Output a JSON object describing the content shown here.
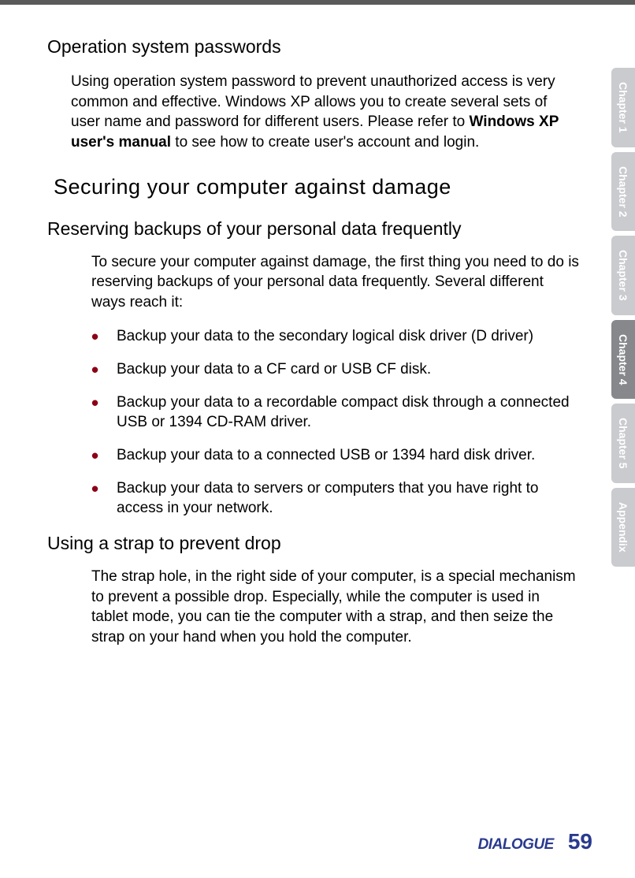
{
  "top_bar_color": "#5a5a5a",
  "section_passwords": {
    "heading": "Operation system passwords",
    "body_before_bold": "Using operation system password to prevent unauthorized access is very common and effective. Windows XP allows you to create several sets of user name and password for different users. Please refer to ",
    "bold": "Windows XP user's manual",
    "body_after_bold": " to see how to create user's account and login."
  },
  "section_damage": {
    "heading": "Securing your computer against damage",
    "backups": {
      "heading": "Reserving backups of your personal data frequently",
      "intro": "To secure your computer against damage, the first thing you need to do is reserving backups of your personal data frequently. Several different ways reach it:",
      "bullets": [
        "Backup your data to the secondary logical disk driver (D driver)",
        "Backup your data to a CF card or USB CF disk.",
        "Backup your data to a recordable compact disk through a connected USB or 1394 CD-RAM driver.",
        "Backup your data to a connected USB or 1394 hard disk driver.",
        "Backup your data to servers or computers that you have right to access in your network."
      ]
    },
    "strap": {
      "heading": "Using a strap to prevent drop",
      "body": "The strap hole, in the right side of your computer, is a special mechanism to prevent a possible drop. Especially, while the computer is used in tablet mode, you can tie the computer with a strap, and then seize the strap on your hand when you hold the computer."
    }
  },
  "tabs": [
    {
      "label": "Chapter 1",
      "active": false
    },
    {
      "label": "Chapter 2",
      "active": false
    },
    {
      "label": "Chapter 3",
      "active": false
    },
    {
      "label": "Chapter 4",
      "active": true
    },
    {
      "label": "Chapter 5",
      "active": false
    },
    {
      "label": "Appendix",
      "active": false
    }
  ],
  "footer": {
    "logo": "DIALOGUE",
    "page": "59"
  },
  "colors": {
    "bullet": "#8b0015",
    "tab_inactive": "#c9cbcf",
    "tab_active": "#86888c",
    "brand": "#2a3a8e"
  }
}
